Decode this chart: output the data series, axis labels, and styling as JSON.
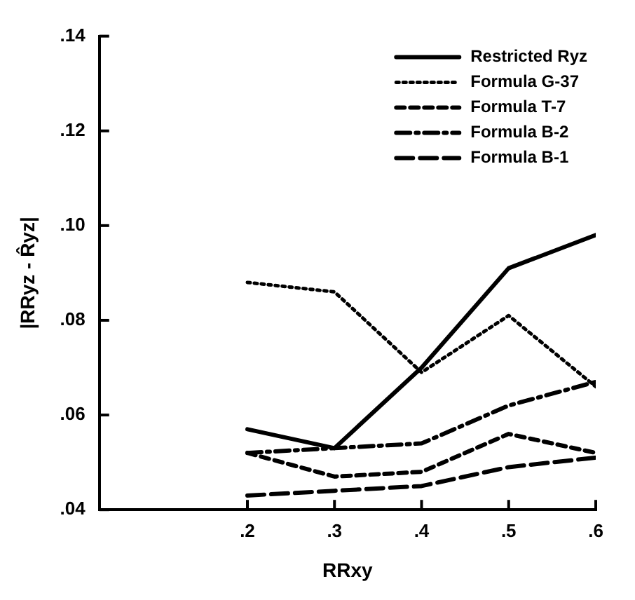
{
  "chart_data": {
    "type": "line",
    "xlabel": "RRxy",
    "ylabel": "|RRyz - R̂yz|",
    "x": [
      0.2,
      0.3,
      0.4,
      0.5,
      0.6
    ],
    "xlim": [
      0.03,
      0.6
    ],
    "ylim": [
      0.04,
      0.14
    ],
    "xticks": [
      {
        "value": 0.2,
        "label": ".2"
      },
      {
        "value": 0.3,
        "label": ".3"
      },
      {
        "value": 0.4,
        "label": ".4"
      },
      {
        "value": 0.5,
        "label": ".5"
      },
      {
        "value": 0.6,
        "label": ".6"
      }
    ],
    "yticks": [
      {
        "value": 0.04,
        "label": ".04"
      },
      {
        "value": 0.06,
        "label": ".06"
      },
      {
        "value": 0.08,
        "label": ".08"
      },
      {
        "value": 0.1,
        "label": ".10"
      },
      {
        "value": 0.12,
        "label": ".12"
      },
      {
        "value": 0.14,
        "label": ".14"
      }
    ],
    "grid": false,
    "legend": "top right",
    "marker": "none",
    "series": [
      {
        "name": "Restricted Ryz",
        "color": "#000000",
        "line_style": "solid",
        "values": [
          0.057,
          0.053,
          0.07,
          0.091,
          0.098
        ]
      },
      {
        "name": "Formula G-37",
        "color": "#000000",
        "line_style": "dotted",
        "values": [
          0.088,
          0.086,
          0.069,
          0.081,
          0.066
        ]
      },
      {
        "name": "Formula T-7",
        "color": "#000000",
        "line_style": "dashed",
        "values": [
          0.052,
          0.047,
          0.048,
          0.056,
          0.052
        ]
      },
      {
        "name": "Formula B-2",
        "color": "#000000",
        "line_style": "dashed",
        "values": [
          0.052,
          0.053,
          0.054,
          0.062,
          0.067
        ]
      },
      {
        "name": "Formula B-1",
        "color": "#000000",
        "line_style": "dashed",
        "values": [
          0.043,
          0.044,
          0.045,
          0.049,
          0.051
        ]
      }
    ]
  }
}
